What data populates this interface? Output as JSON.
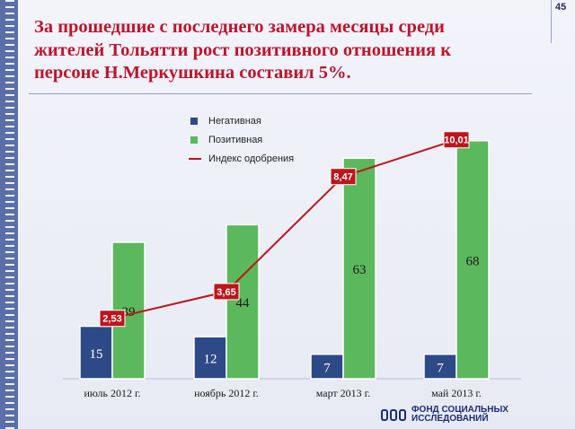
{
  "page_number": "45",
  "title": "За прошедшие с последнего замера  месяцы среди жителей Тольятти рост позитивного отношения к персоне Н.Меркушкина составил 5%.",
  "colors": {
    "negative": "#2d4a86",
    "positive": "#5cb85c",
    "index_line": "#c0141c",
    "title": "#c0142c"
  },
  "legend": {
    "negative": "Негативная",
    "positive": "Позитивная",
    "index": "Индекс одобрения"
  },
  "chart_data": {
    "type": "bar",
    "categories": [
      "июль 2012 г.",
      "ноябрь 2012 г.",
      "март 2013 г.",
      "май 2013 г."
    ],
    "series": [
      {
        "name": "Негативная",
        "type": "bar",
        "values": [
          15,
          12,
          7,
          7
        ]
      },
      {
        "name": "Позитивная",
        "type": "bar",
        "values": [
          39,
          44,
          63,
          68
        ]
      },
      {
        "name": "Индекс одобрения",
        "type": "line",
        "values": [
          2.53,
          3.65,
          8.47,
          10.01
        ],
        "labels": [
          "2,53",
          "3,65",
          "8,47",
          "10,01"
        ]
      }
    ],
    "ylim": [
      0,
      70
    ],
    "y2lim": [
      0,
      11
    ],
    "grid": false,
    "legend_position": "top-left"
  },
  "logo": {
    "line1": "ФОНД СОЦИАЛЬНЫХ",
    "line2": "ИССЛЕДОВАНИЙ"
  }
}
